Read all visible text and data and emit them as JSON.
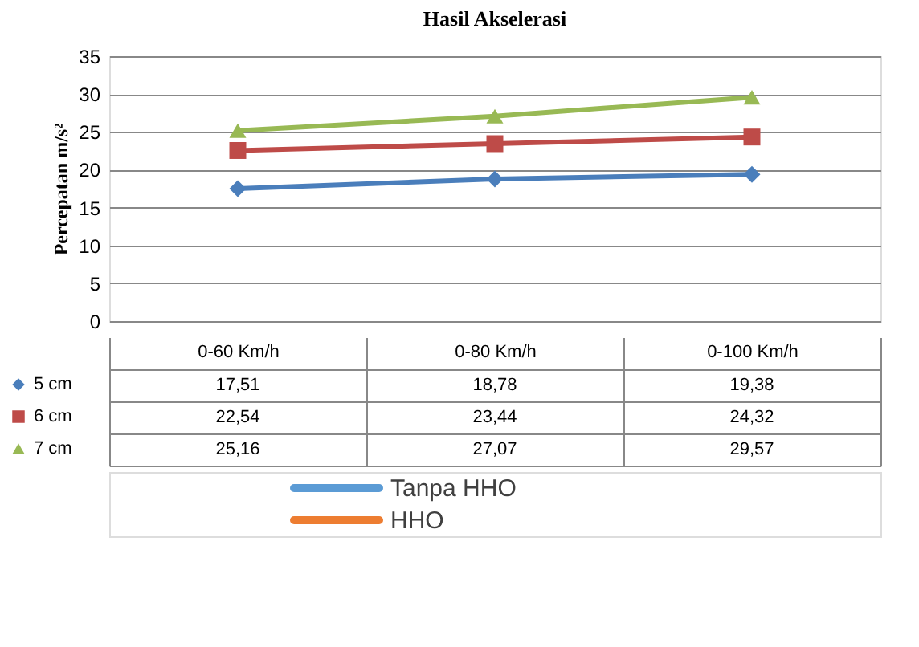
{
  "chart_data": {
    "type": "line",
    "title": "Hasil Akselerasi",
    "ylabel": "Percepatan m/s²",
    "categories": [
      "0-60 Km/h",
      "0-80 Km/h",
      "0-100 Km/h"
    ],
    "series": [
      {
        "name": "5 cm",
        "color": "#4a7ebb",
        "marker": "diamond",
        "values": [
          17.51,
          18.78,
          19.38
        ],
        "value_labels": [
          "17,51",
          "18,78",
          "19,38"
        ]
      },
      {
        "name": "6 cm",
        "color": "#be4b48",
        "marker": "square",
        "values": [
          22.54,
          23.44,
          24.32
        ],
        "value_labels": [
          "22,54",
          "23,44",
          "24,32"
        ]
      },
      {
        "name": "7 cm",
        "color": "#98b954",
        "marker": "triangle",
        "values": [
          25.16,
          27.07,
          29.57
        ],
        "value_labels": [
          "25,16",
          "27,07",
          "29,57"
        ]
      }
    ],
    "ylim": [
      0,
      35
    ],
    "yticks": [
      0,
      5,
      10,
      15,
      20,
      25,
      30,
      35
    ],
    "grid": "y",
    "legend": "bottom",
    "line_style": "solid",
    "annotations": [
      "Tanpa HHO",
      "HHO"
    ]
  }
}
